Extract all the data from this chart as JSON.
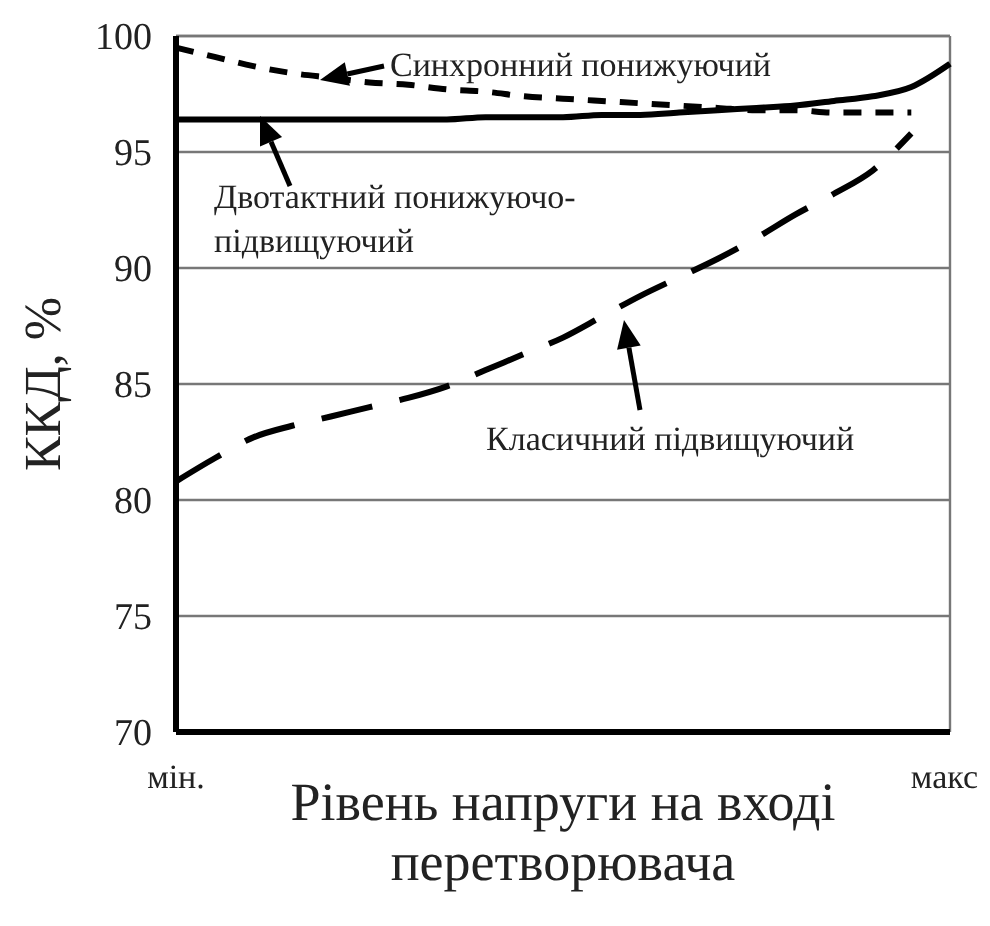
{
  "chart_data": {
    "type": "line",
    "ylabel": "ККД, %",
    "xlabel": "Рівень напруги на вході перетворювача",
    "categories": [
      "мін.",
      null,
      null,
      null,
      null,
      null,
      null,
      null,
      null,
      null,
      null,
      null,
      null,
      null,
      null,
      null,
      null,
      null,
      null,
      null,
      "макс"
    ],
    "ylim": [
      70,
      100
    ],
    "yticks": [
      70,
      75,
      80,
      85,
      90,
      95,
      100
    ],
    "grid": "y",
    "series": [
      {
        "color": "#000000",
        "line_style": "dotted",
        "values": [
          99.5,
          99.1,
          98.7,
          98.4,
          98.2,
          98.0,
          97.9,
          97.7,
          97.6,
          97.4,
          97.3,
          97.2,
          97.1,
          97.0,
          96.9,
          96.8,
          96.8,
          96.7,
          96.7,
          96.7,
          null
        ]
      },
      {
        "color": "#000000",
        "line_style": "solid",
        "values": [
          96.4,
          96.4,
          96.4,
          96.4,
          96.4,
          96.4,
          96.4,
          96.4,
          96.5,
          96.5,
          96.5,
          96.6,
          96.6,
          96.7,
          96.8,
          96.9,
          97.0,
          97.2,
          97.4,
          97.8,
          98.8
        ]
      },
      {
        "color": "#000000",
        "line_style": "dashed",
        "values": [
          80.8,
          81.8,
          82.7,
          83.2,
          83.6,
          84.0,
          84.4,
          84.9,
          85.6,
          86.3,
          87.0,
          87.9,
          88.8,
          89.6,
          90.4,
          91.3,
          92.3,
          93.2,
          94.2,
          95.8,
          null
        ]
      }
    ],
    "annotations": [
      "Синхронний понижуючий",
      "Двотактний понижуючо-\nпідвищуючий",
      "Класичний підвищуючий"
    ]
  }
}
